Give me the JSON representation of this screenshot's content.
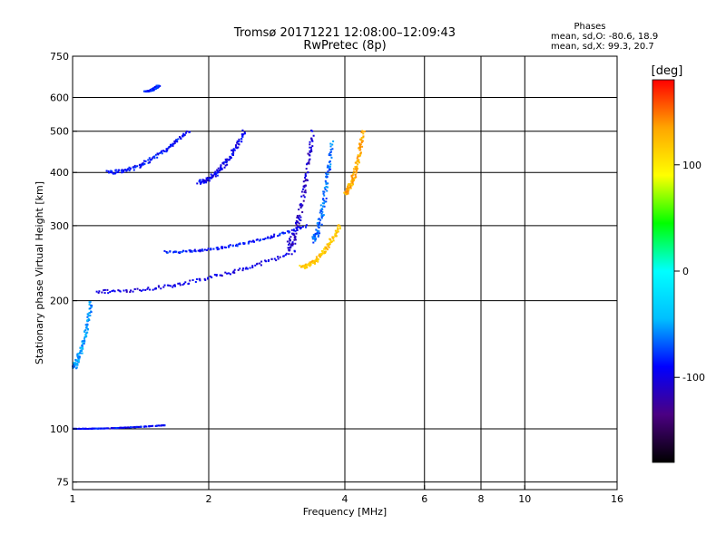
{
  "title": {
    "line1": "Tromsø 20171221 12:08:00–12:09:43",
    "line2": "RwPretec (8p)"
  },
  "stats": {
    "heading": "Phases",
    "line_o": "mean, sd,O: -80.6, 18.9",
    "line_x": "mean, sd,X:  99.3, 20.7"
  },
  "chart_data": {
    "type": "scatter",
    "xlabel": "Frequency [MHz]",
    "ylabel": "Stationary phase Virtual Height [km]",
    "x_scale": "log",
    "y_scale": "log",
    "xlim": [
      1,
      16
    ],
    "ylim": [
      72,
      750
    ],
    "x_ticks": [
      1,
      2,
      4,
      6,
      8,
      10,
      16
    ],
    "x_tick_labels": [
      "1",
      "2",
      "4",
      "6",
      "8",
      "10",
      "16"
    ],
    "y_ticks": [
      75,
      100,
      200,
      300,
      400,
      500,
      600,
      750
    ],
    "y_tick_labels": [
      "75",
      "100",
      "200",
      "300",
      "400",
      "500",
      "600",
      "750"
    ],
    "grid": true,
    "colorbar": {
      "label": "[deg]",
      "range": [
        -180,
        180
      ],
      "ticks": [
        100,
        0,
        -100
      ],
      "tick_labels": [
        "100",
        "0",
        "-100"
      ]
    },
    "traces": [
      {
        "f_range": [
          1.0,
          1.6
        ],
        "h": [
          100,
          102
        ],
        "phase": -90
      },
      {
        "f_range": [
          1.0,
          1.1
        ],
        "h": [
          140,
          200
        ],
        "phase": -55
      },
      {
        "f_range": [
          1.13,
          3.1
        ],
        "h": [
          210,
          260
        ],
        "phase": -100
      },
      {
        "f_range": [
          3.0,
          3.4
        ],
        "h": [
          270,
          500
        ],
        "phase": -110
      },
      {
        "f_range": [
          3.4,
          3.75
        ],
        "h": [
          280,
          470
        ],
        "phase": -65
      },
      {
        "f_range": [
          3.2,
          3.9
        ],
        "h": [
          240,
          300
        ],
        "phase": 120
      },
      {
        "f_range": [
          4.0,
          4.4
        ],
        "h": [
          360,
          500
        ],
        "phase": 130
      },
      {
        "f_range": [
          1.2,
          1.8
        ],
        "h": [
          400,
          500
        ],
        "phase": -90
      },
      {
        "f_range": [
          1.9,
          2.4
        ],
        "h": [
          380,
          500
        ],
        "phase": -95
      },
      {
        "f_range": [
          1.45,
          1.55
        ],
        "h": [
          620,
          640
        ],
        "phase": -80
      },
      {
        "f_range": [
          1.6,
          3.3
        ],
        "h": [
          260,
          300
        ],
        "phase": -85
      }
    ]
  },
  "colors": {
    "grid": "#000000",
    "colorbar_stops": [
      "#000000",
      "#4b0082",
      "#0000ff",
      "#00bfff",
      "#00ffff",
      "#00ff00",
      "#ffff00",
      "#ffa500",
      "#ff0000"
    ]
  }
}
